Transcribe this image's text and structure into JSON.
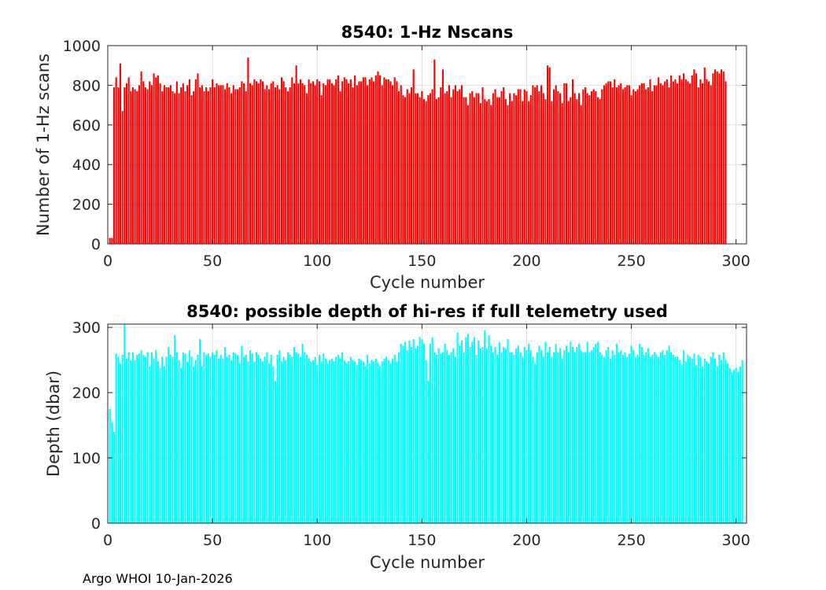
{
  "footer": "Argo WHOI 10-Jan-2026",
  "chart_data": [
    {
      "type": "bar",
      "title": "8540: 1-Hz Nscans",
      "xlabel": "Cycle number",
      "ylabel": "Number of 1-Hz scans",
      "xlim": [
        0,
        305
      ],
      "ylim": [
        0,
        1000
      ],
      "xticks": [
        0,
        50,
        100,
        150,
        200,
        250,
        300
      ],
      "yticks": [
        0,
        200,
        400,
        600,
        800,
        1000
      ],
      "grid": true,
      "color": "#ff0000",
      "x_start": 1,
      "values": [
        30,
        30,
        790,
        840,
        790,
        910,
        670,
        790,
        810,
        840,
        770,
        790,
        780,
        770,
        800,
        870,
        820,
        790,
        780,
        820,
        800,
        860,
        840,
        850,
        810,
        770,
        800,
        790,
        790,
        800,
        770,
        760,
        820,
        760,
        790,
        810,
        770,
        800,
        830,
        750,
        770,
        830,
        860,
        790,
        800,
        770,
        790,
        770,
        790,
        830,
        790,
        810,
        800,
        800,
        800,
        780,
        810,
        790,
        760,
        800,
        780,
        780,
        790,
        820,
        810,
        770,
        940,
        810,
        800,
        830,
        820,
        810,
        830,
        820,
        780,
        800,
        780,
        810,
        820,
        790,
        800,
        780,
        840,
        820,
        790,
        770,
        790,
        840,
        810,
        900,
        810,
        830,
        810,
        800,
        760,
        830,
        810,
        820,
        800,
        830,
        820,
        750,
        810,
        800,
        830,
        830,
        810,
        800,
        830,
        850,
        770,
        820,
        840,
        830,
        810,
        830,
        790,
        850,
        800,
        820,
        820,
        840,
        840,
        800,
        830,
        840,
        820,
        850,
        870,
        850,
        800,
        840,
        830,
        830,
        820,
        800,
        840,
        820,
        770,
        800,
        750,
        740,
        780,
        760,
        790,
        880,
        760,
        760,
        740,
        770,
        730,
        720,
        750,
        760,
        780,
        930,
        730,
        740,
        790,
        880,
        760,
        770,
        800,
        740,
        780,
        800,
        770,
        780,
        800,
        740,
        740,
        700,
        760,
        770,
        740,
        760,
        760,
        710,
        790,
        730,
        720,
        730,
        700,
        760,
        780,
        740,
        740,
        770,
        790,
        730,
        700,
        760,
        720,
        760,
        750,
        780,
        780,
        720,
        780,
        770,
        720,
        750,
        800,
        790,
        800,
        770,
        800,
        760,
        730,
        900,
        890,
        720,
        780,
        800,
        770,
        760,
        710,
        810,
        810,
        720,
        740,
        830,
        760,
        730,
        760,
        700,
        780,
        790,
        760,
        750,
        770,
        780,
        770,
        740,
        730,
        780,
        800,
        810,
        820,
        820,
        790,
        830,
        790,
        800,
        810,
        780,
        790,
        800,
        800,
        750,
        780,
        770,
        780,
        800,
        810,
        810,
        780,
        790,
        830,
        770,
        800,
        800,
        840,
        810,
        800,
        820,
        830,
        790,
        850,
        820,
        830,
        810,
        850,
        830,
        860,
        830,
        820,
        810,
        850,
        880,
        860,
        790,
        830,
        810,
        890,
        830,
        820,
        800,
        860,
        880,
        870,
        860,
        880,
        870,
        820
      ]
    },
    {
      "type": "bar",
      "title": "8540: possible depth of hi-res if full telemetry used",
      "xlabel": "Cycle number",
      "ylabel": "Depth (dbar)",
      "xlim": [
        0,
        305
      ],
      "ylim": [
        0,
        305
      ],
      "xticks": [
        0,
        50,
        100,
        150,
        200,
        250,
        300
      ],
      "yticks": [
        0,
        100,
        200,
        300
      ],
      "grid": true,
      "color": "#00ffff",
      "x_start": 1,
      "values": [
        175,
        155,
        140,
        260,
        255,
        245,
        258,
        305,
        252,
        262,
        250,
        262,
        250,
        258,
        260,
        265,
        258,
        255,
        262,
        240,
        262,
        252,
        265,
        248,
        238,
        255,
        240,
        255,
        270,
        258,
        255,
        288,
        262,
        250,
        238,
        262,
        260,
        248,
        265,
        255,
        240,
        250,
        258,
        282,
        240,
        262,
        258,
        260,
        255,
        262,
        258,
        265,
        252,
        258,
        252,
        270,
        255,
        258,
        250,
        262,
        260,
        258,
        245,
        272,
        255,
        258,
        248,
        265,
        260,
        248,
        262,
        258,
        252,
        248,
        255,
        262,
        245,
        258,
        240,
        218,
        258,
        265,
        248,
        255,
        250,
        262,
        258,
        255,
        270,
        262,
        260,
        255,
        275,
        262,
        258,
        252,
        248,
        250,
        255,
        242,
        258,
        248,
        260,
        252,
        245,
        250,
        252,
        248,
        255,
        258,
        252,
        262,
        250,
        245,
        248,
        255,
        250,
        248,
        242,
        252,
        250,
        248,
        240,
        258,
        245,
        250,
        248,
        252,
        245,
        240,
        248,
        252,
        255,
        250,
        245,
        252,
        258,
        248,
        262,
        275,
        272,
        278,
        265,
        280,
        270,
        282,
        268,
        272,
        285,
        282,
        275,
        250,
        218,
        275,
        285,
        262,
        258,
        268,
        260,
        262,
        275,
        265,
        258,
        262,
        268,
        255,
        292,
        272,
        280,
        262,
        285,
        290,
        270,
        278,
        285,
        258,
        280,
        268,
        270,
        295,
        268,
        288,
        272,
        262,
        270,
        258,
        278,
        262,
        270,
        268,
        282,
        262,
        262,
        258,
        268,
        272,
        262,
        255,
        270,
        265,
        275,
        265,
        255,
        245,
        262,
        272,
        265,
        255,
        278,
        262,
        270,
        255,
        262,
        275,
        262,
        268,
        252,
        265,
        272,
        262,
        278,
        270,
        262,
        270,
        275,
        265,
        262,
        262,
        278,
        262,
        265,
        270,
        275,
        278,
        262,
        258,
        255,
        265,
        270,
        252,
        265,
        258,
        275,
        262,
        265,
        258,
        262,
        255,
        260,
        272,
        265,
        255,
        258,
        275,
        270,
        258,
        262,
        268,
        255,
        258,
        262,
        258,
        255,
        262,
        265,
        258,
        265,
        272,
        262,
        258,
        255,
        255,
        250,
        242,
        265,
        248,
        258,
        255,
        252,
        260,
        242,
        258,
        255,
        240,
        252,
        248,
        245,
        255,
        262,
        252,
        240,
        258,
        250,
        262,
        250,
        245,
        238,
        232,
        235,
        238,
        232,
        240,
        250
      ]
    }
  ]
}
